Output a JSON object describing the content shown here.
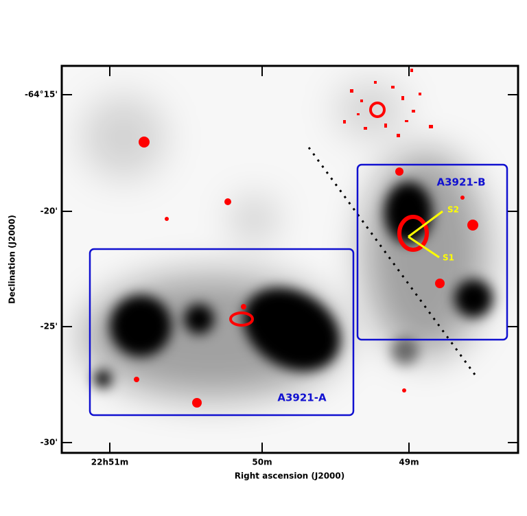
{
  "axes": {
    "x_label": "Right ascension (J2000)",
    "y_label": "Declination (J2000)",
    "x_ticks": [
      "22h51m",
      "50m",
      "49m"
    ],
    "y_ticks": [
      "-64°15'",
      "-20'",
      "-25'",
      "-30'"
    ]
  },
  "regions": [
    {
      "label": "A3921-A"
    },
    {
      "label": "A3921-B"
    }
  ],
  "markers": [
    "S2",
    "S1"
  ]
}
